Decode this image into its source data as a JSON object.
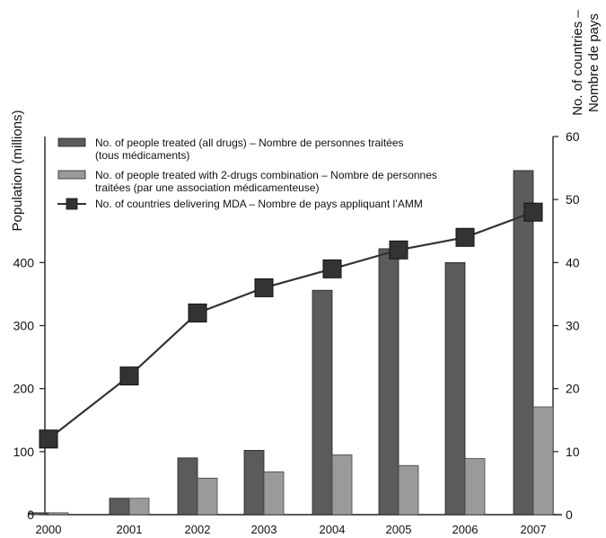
{
  "chart_data": {
    "type": "bar",
    "categories": [
      "2000",
      "2001",
      "2002",
      "2003",
      "2004",
      "2005",
      "2006",
      "2007"
    ],
    "series": [
      {
        "name_lines": [
          "No. of people treated (all drugs) – Nombre de personnes traitées",
          "(tous médicaments)"
        ],
        "axis": "left",
        "values": [
          3,
          26,
          90,
          102,
          356,
          422,
          400,
          546
        ],
        "color": "#5b5b5b"
      },
      {
        "name_lines": [
          "No. of people treated with 2-drugs combination – Nombre de personnes",
          "traitées (par une association médicamenteuse)"
        ],
        "axis": "left",
        "values": [
          3,
          26,
          58,
          68,
          95,
          78,
          89,
          171
        ],
        "color": "#9a9a9a"
      },
      {
        "name_lines": [
          "No. of countries delivering MDA – Nombre de pays appliquant l’AMM"
        ],
        "axis": "right",
        "type": "line",
        "values": [
          12,
          22,
          32,
          36,
          39,
          42,
          44,
          48
        ],
        "color": "#333333"
      }
    ],
    "ylabel": "Population (millions)",
    "y2label_lines": [
      "No. of countries –",
      "Nombre de pays"
    ],
    "ylim": [
      0,
      600
    ],
    "y_ticks": [
      0,
      100,
      200,
      300,
      400
    ],
    "y2lim": [
      0,
      60
    ],
    "y2_ticks": [
      0,
      10,
      20,
      30,
      40,
      50,
      60
    ],
    "grid": false,
    "legend_position": "top-left"
  }
}
